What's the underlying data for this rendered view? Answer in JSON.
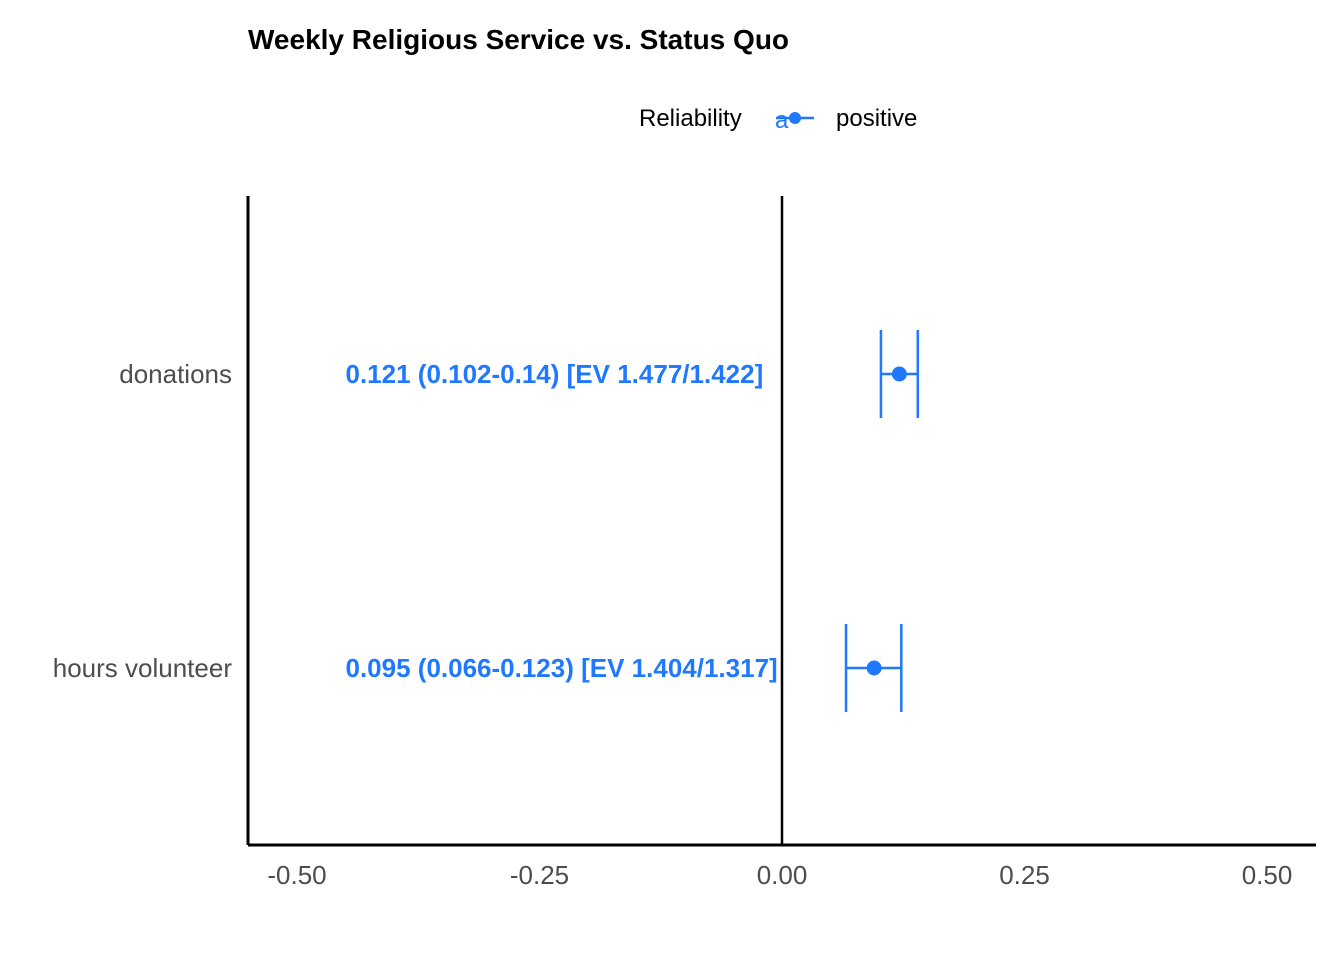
{
  "chart_data": {
    "type": "forest",
    "title": "Weekly Religious Service vs. Status Quo",
    "xlabel": "",
    "ylabel": "",
    "xlim": [
      -0.55,
      0.55
    ],
    "x_ticks": [
      -0.5,
      -0.25,
      0.0,
      0.25,
      0.5
    ],
    "x_tick_labels": [
      "-0.50",
      "-0.25",
      "0.00",
      "0.25",
      "0.50"
    ],
    "reference_line": 0,
    "grid": false,
    "legend": {
      "title": "Reliability",
      "position": "top",
      "items": [
        {
          "label": "positive",
          "color": "#1f78ff"
        }
      ]
    },
    "categories": [
      "donations",
      "hours volunteer"
    ],
    "series": [
      {
        "name": "positive",
        "color": "#1f78ff",
        "points": [
          {
            "category": "donations",
            "estimate": 0.121,
            "lower": 0.102,
            "upper": 0.14,
            "label": "0.121 (0.102-0.14) [EV 1.477/1.422]"
          },
          {
            "category": "hours volunteer",
            "estimate": 0.095,
            "lower": 0.066,
            "upper": 0.123,
            "label": "0.095 (0.066-0.123) [EV 1.404/1.317]"
          }
        ]
      }
    ],
    "data_label_x": -0.45
  }
}
